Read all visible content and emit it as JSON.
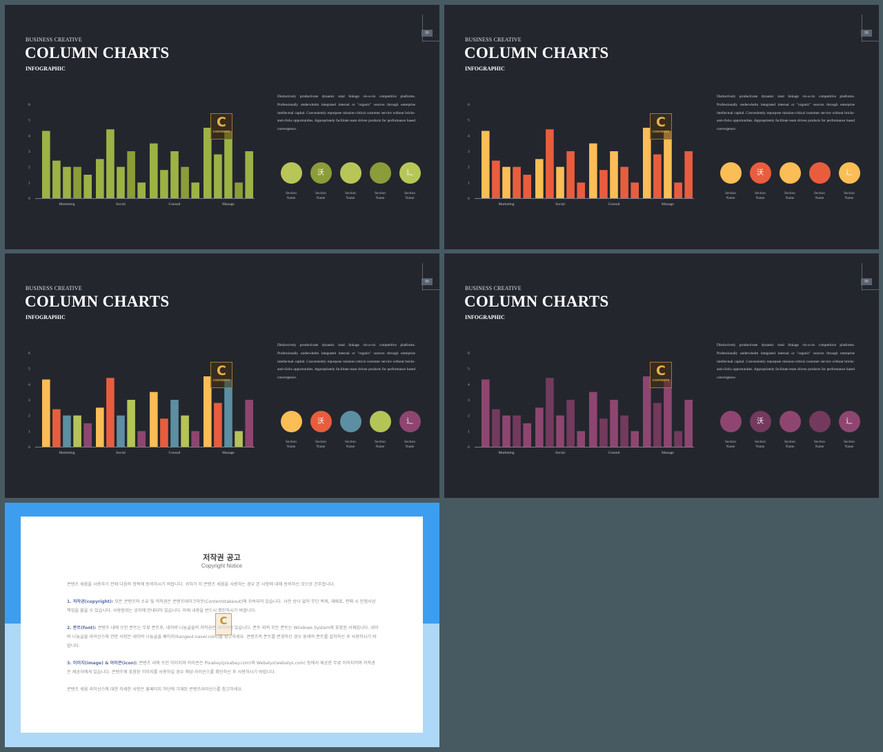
{
  "page": {
    "background": "#475a62"
  },
  "slides": [
    {
      "kicker": "BUSINESS CREATIVE",
      "title": "COLUMN CHARTS",
      "subtitle": "INFOGRAPHIC",
      "page_number": "99",
      "description": "Distinctively productivate dynamic total linkage vis-a-vis competitive platforms. Professionally underwhelm integrated internal or \"organic\" sources through enterprise intellectual capital. Conveniently repurpose mission-critical customer service without bricks-and-clicks opportunities. Appropriately facilitate team driven products for performance based convergence.",
      "bar_colors": [
        "#9db244",
        "#9db244",
        "#9db244",
        "#8b9c39",
        "#9db244"
      ],
      "circles": [
        {
          "color": "#b7c657",
          "icon": "",
          "label": "Section\nName"
        },
        {
          "color": "#8b9c39",
          "icon": "沃",
          "label": "Section\nName"
        },
        {
          "color": "#b7c657",
          "icon": "",
          "label": "Section\nName"
        },
        {
          "color": "#8b9c39",
          "icon": "",
          "label": "Section\nName"
        },
        {
          "color": "#b7c657",
          "icon": "辶",
          "label": "Section\nName"
        }
      ]
    },
    {
      "kicker": "BUSINESS CREATIVE",
      "title": "COLUMN CHARTS",
      "subtitle": "INFOGRAPHIC",
      "page_number": "99",
      "description": "Distinctively productivate dynamic total linkage vis-a-vis competitive platforms. Professionally underwhelm integrated internal or \"organic\" sources through enterprise intellectual capital. Conveniently repurpose mission-critical customer service without bricks-and-clicks opportunities. Appropriately facilitate team driven products for performance based convergence.",
      "bar_colors": [
        "#fbbd55",
        "#e85d3e",
        "#fbbd55",
        "#e85d3e",
        "#e85d3e"
      ],
      "circles": [
        {
          "color": "#fbbd55",
          "icon": "",
          "label": "Section\nName"
        },
        {
          "color": "#e85d3e",
          "icon": "沃",
          "label": "Section\nName"
        },
        {
          "color": "#fbbd55",
          "icon": "",
          "label": "Section\nName"
        },
        {
          "color": "#e85d3e",
          "icon": "",
          "label": "Section\nName"
        },
        {
          "color": "#fbbd55",
          "icon": "辶",
          "label": "Section\nName"
        }
      ]
    },
    {
      "kicker": "BUSINESS CREATIVE",
      "title": "COLUMN CHARTS",
      "subtitle": "INFOGRAPHIC",
      "page_number": "99",
      "description": "Distinctively productivate dynamic total linkage vis-a-vis competitive platforms. Professionally underwhelm integrated internal or \"organic\" sources through enterprise intellectual capital. Conveniently repurpose mission-critical customer service without bricks-and-clicks opportunities. Appropriately facilitate team driven products for performance based convergence.",
      "bar_colors": [
        "#fbbd55",
        "#e85d3e",
        "#5b8fa1",
        "#b5c456",
        "#8e4670"
      ],
      "circles": [
        {
          "color": "#fbbd55",
          "icon": "",
          "label": "Section\nName"
        },
        {
          "color": "#e85d3e",
          "icon": "沃",
          "label": "Section\nName"
        },
        {
          "color": "#5b8fa1",
          "icon": "",
          "label": "Section\nName"
        },
        {
          "color": "#b5c456",
          "icon": "",
          "label": "Section\nName"
        },
        {
          "color": "#8e4670",
          "icon": "辶",
          "label": "Section\nName"
        }
      ]
    },
    {
      "kicker": "BUSINESS CREATIVE",
      "title": "COLUMN CHARTS",
      "subtitle": "INFOGRAPHIC",
      "page_number": "99",
      "description": "Distinctively productivate dynamic total linkage vis-a-vis competitive platforms. Professionally underwhelm integrated internal or \"organic\" sources through enterprise intellectual capital. Conveniently repurpose mission-critical customer service without bricks-and-clicks opportunities. Appropriately facilitate team driven products for performance based convergence.",
      "bar_colors": [
        "#8e4670",
        "#733a5e",
        "#8e4670",
        "#733a5e",
        "#8e4670"
      ],
      "circles": [
        {
          "color": "#8e4670",
          "icon": "",
          "label": "Section\nName"
        },
        {
          "color": "#733a5e",
          "icon": "沃",
          "label": "Section\nName"
        },
        {
          "color": "#8e4670",
          "icon": "",
          "label": "Section\nName"
        },
        {
          "color": "#733a5e",
          "icon": "",
          "label": "Section\nName"
        },
        {
          "color": "#8e4670",
          "icon": "辶",
          "label": "Section\nName"
        }
      ]
    }
  ],
  "chart_data": {
    "type": "bar",
    "categories": [
      "Marketing",
      "Social",
      "Consult",
      "Manage"
    ],
    "series": [
      {
        "values": [
          4.3,
          2.5,
          3.5,
          4.5
        ]
      },
      {
        "values": [
          2.4,
          4.4,
          1.8,
          2.8
        ]
      },
      {
        "values": [
          2.0,
          2.0,
          3.0,
          4.3
        ]
      },
      {
        "values": [
          2.0,
          3.0,
          2.0,
          1.0
        ]
      },
      {
        "values": [
          1.5,
          1.0,
          1.0,
          3.0
        ]
      }
    ],
    "ylim": [
      0,
      6
    ],
    "yticks": [
      "0",
      "1",
      "2",
      "3",
      "4",
      "5",
      "6"
    ],
    "grid": false
  },
  "watermark": {
    "letter": "C",
    "text": "CONTENTS"
  },
  "notice": {
    "title": "저작권 공고",
    "subtitle": "Copyright Notice",
    "paragraphs": [
      {
        "heading": "",
        "text": "콘텐츠 세움을 사용하기 전에 다음의 항목에 동의하시기 바랍니다. 귀하가 이 콘텐츠 세움을 사용하는 경우 본 사항에 대해 동의하신 것으로 간주합니다."
      },
      {
        "heading": "1. 저작권(copyright):",
        "text": " 모든 콘텐츠의 소유 및 저작권은 콘텐츠테이크아웃(Contentstakeout)에 귀속되어 있습니다. 사전 승낙 없이 무단 복제, 재배포, 판매 시 민형사상 책임을 물을 수 있습니다. 사용범위는 공지에 안내되어 있습니다. 아래 내용을 반드시 확인하시기 바랍니다."
      },
      {
        "heading": "2. 폰트(font):",
        "text": " 콘텐츠 내에 쓰인 폰트는 무료 폰트로, 네이버 나눔글꼴의 저작권은 네이버에 있습니다. 폰트 외의 모든 폰트는 Windows System에 포함된 서체입니다. 네이버 나눔글꼴 라이선스에 관한 사항은 네이버 나눔글꼴 페이지(hangeul.naver.com)를 참고하세요. 콘텐츠의 폰트를 변경하신 경우 원래의 폰트를 설치하신 후 사용하시기 바랍니다."
      },
      {
        "heading": "3. 이미지(image) & 아이콘(icon):",
        "text": " 콘텐츠 내에 쓰인 이미지와 아이콘은 Pixabay(pixabay.com)와 Webalys(webalys.com) 등에서 제공한 무료 이미지이며 저작권은 제공자에게 있습니다. 콘텐츠에 포함된 이미지를 사용하실 경우 해당 라이선스를 확인하신 후 사용하시기 바랍니다."
      },
      {
        "heading": "",
        "text": "콘텐츠 세움 라이선스에 대한 자세한 사항은 홈페이지 하단에 기재된 콘텐츠라이선스를 참고하세요."
      }
    ]
  }
}
